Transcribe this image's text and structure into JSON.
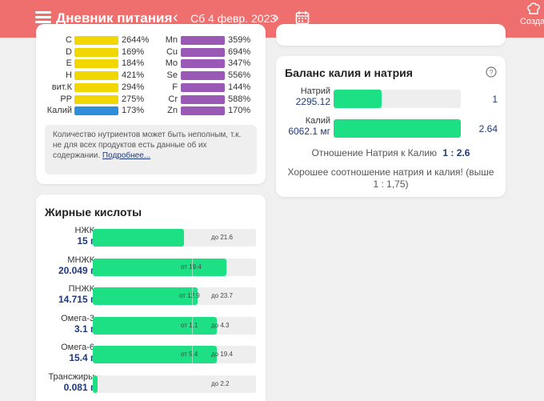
{
  "header": {
    "title": "Дневник питания",
    "date": "Сб 4 февр. 2023",
    "create_label": "Создать рецепт",
    "prev_icon": "chevron-left-icon",
    "next_icon": "chevron-right-icon",
    "calendar_icon": "calendar-icon",
    "menu_icon": "menu-icon"
  },
  "nutrients": {
    "left": [
      {
        "name": "C",
        "pct": "2644%",
        "color": "#f2d600"
      },
      {
        "name": "D",
        "pct": "169%",
        "color": "#f2d600"
      },
      {
        "name": "E",
        "pct": "184%",
        "color": "#f2d600"
      },
      {
        "name": "H",
        "pct": "421%",
        "color": "#f2d600"
      },
      {
        "name": "вит.К",
        "pct": "294%",
        "color": "#f2d600"
      },
      {
        "name": "PP",
        "pct": "275%",
        "color": "#f2d600"
      },
      {
        "name": "Калий",
        "pct": "173%",
        "color": "#2e8fd8"
      }
    ],
    "right": [
      {
        "name": "Mn",
        "pct": "359%",
        "color": "#9b59b6"
      },
      {
        "name": "Cu",
        "pct": "694%",
        "color": "#9b59b6"
      },
      {
        "name": "Mo",
        "pct": "347%",
        "color": "#9b59b6"
      },
      {
        "name": "Se",
        "pct": "556%",
        "color": "#9b59b6"
      },
      {
        "name": "F",
        "pct": "144%",
        "color": "#9b59b6"
      },
      {
        "name": "Cr",
        "pct": "588%",
        "color": "#9b59b6"
      },
      {
        "name": "Zn",
        "pct": "170%",
        "color": "#9b59b6"
      }
    ],
    "note": "Количество нутриентов может быть неполным, т.к. не для всех продуктов есть данные об их содержании.",
    "note_link": "Подробнее..."
  },
  "fatty_acids": {
    "title": "Жирные кислоты",
    "rows": [
      {
        "name": "НЖК",
        "value": "15 г",
        "fill_pct": 0.56,
        "min": "",
        "max": "до 21.6"
      },
      {
        "name": "МНЖК",
        "value": "20.049 г",
        "fill_pct": 0.82,
        "min": "от 19.4",
        "max": ""
      },
      {
        "name": "ПНЖК",
        "value": "14.715 г",
        "fill_pct": 0.64,
        "min": "от 12.9",
        "max": "до 23.7"
      },
      {
        "name": "Омега-3",
        "value": "3.1 г",
        "fill_pct": 0.76,
        "min": "от 1.1",
        "max": "до 4.3"
      },
      {
        "name": "Омега-6",
        "value": "15.4 г",
        "fill_pct": 0.76,
        "min": "от 5.4",
        "max": "до 19.4"
      },
      {
        "name": "Трансжиры",
        "value": "0.081 г",
        "fill_pct": 0.03,
        "min": "",
        "max": "до 2.2"
      }
    ]
  },
  "balance": {
    "title": "Баланс калия и натрия",
    "help_icon": "question-circle-icon",
    "rows": [
      {
        "name": "Натрий",
        "value": "2295.12",
        "fill_pct": 0.38,
        "num": "1"
      },
      {
        "name": "Калий",
        "value": "6062.1 мг",
        "fill_pct": 1.0,
        "num": "2.64"
      }
    ],
    "ratio_label": "Отношение Натрия к Калию",
    "ratio_value": "1 : 2.6",
    "verdict": "Хорошее соотношение натрия и калия! (выше 1 : 1,75)"
  }
}
